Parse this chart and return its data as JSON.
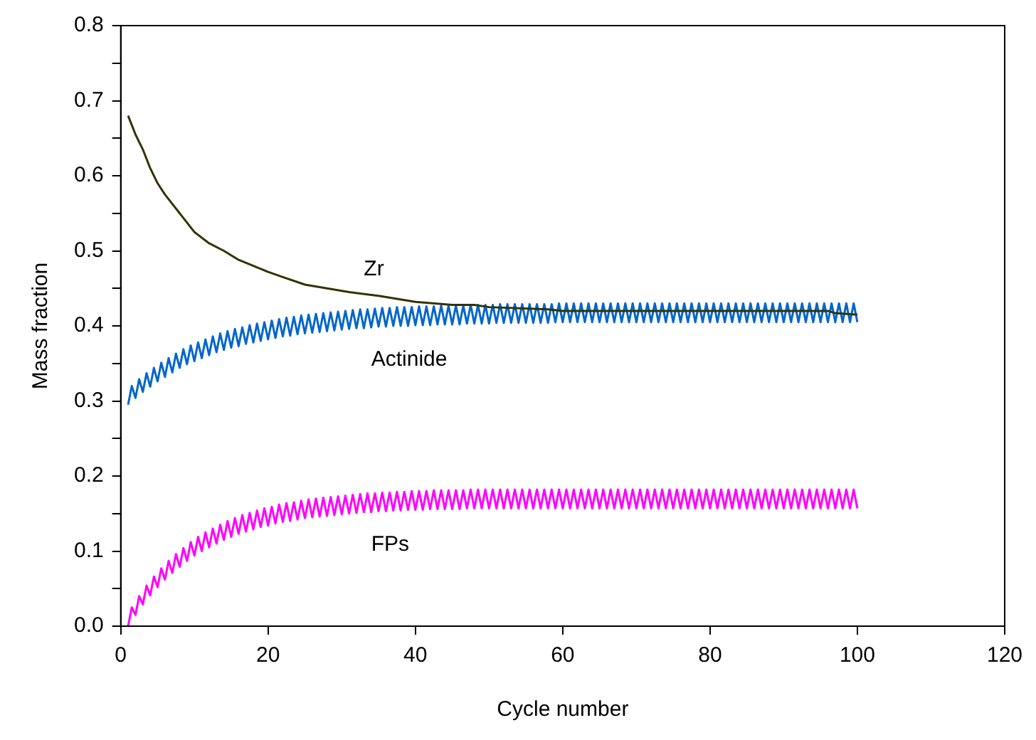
{
  "chart_data": {
    "type": "line",
    "xlabel": "Cycle number",
    "ylabel": "Mass fraction",
    "grid": false,
    "legend": false,
    "marker": "none",
    "line_style": "solid",
    "xlim": [
      0,
      120
    ],
    "xticks": [
      0,
      20,
      40,
      60,
      80,
      100,
      120
    ],
    "ylim": [
      0,
      0.8
    ],
    "yticks": [
      {
        "value": 0,
        "label": "0.0"
      },
      {
        "value": 0.05,
        "label": null
      },
      0.1,
      {
        "value": 0.15,
        "label": null
      },
      0.2,
      {
        "value": 0.25,
        "label": null
      },
      0.3,
      {
        "value": 0.35,
        "label": null
      },
      0.4,
      {
        "value": 0.45,
        "label": null
      },
      0.5,
      {
        "value": 0.55,
        "label": null
      },
      0.6,
      {
        "value": 0.65,
        "label": null
      },
      0.7,
      {
        "value": 0.75,
        "label": null
      },
      0.8
    ],
    "x": [
      1,
      1.5,
      2,
      2.5,
      3,
      3.5,
      4,
      4.5,
      5,
      5.5,
      6,
      6.5,
      7,
      7.5,
      8,
      8.5,
      9,
      9.5,
      10,
      10.5,
      11,
      11.5,
      12,
      12.5,
      13,
      13.5,
      14,
      14.5,
      15,
      15.5,
      16,
      16.5,
      17,
      17.5,
      18,
      18.5,
      19,
      19.5,
      20,
      20.5,
      21,
      21.5,
      22,
      22.5,
      23,
      23.5,
      24,
      24.5,
      25,
      25.5,
      26,
      26.5,
      27,
      27.5,
      28,
      28.5,
      29,
      29.5,
      30,
      30.5,
      31,
      31.5,
      32,
      32.5,
      33,
      33.5,
      34,
      34.5,
      35,
      35.5,
      36,
      36.5,
      37,
      37.5,
      38,
      38.5,
      39,
      39.5,
      40,
      40.5,
      41,
      41.5,
      42,
      42.5,
      43,
      43.5,
      44,
      44.5,
      45,
      45.5,
      46,
      46.5,
      47,
      47.5,
      48,
      48.5,
      49,
      49.5,
      50,
      50.5,
      51,
      51.5,
      52,
      52.5,
      53,
      53.5,
      54,
      54.5,
      55,
      55.5,
      56,
      56.5,
      57,
      57.5,
      58,
      58.5,
      59,
      59.5,
      60,
      60.5,
      61,
      61.5,
      62,
      62.5,
      63,
      63.5,
      64,
      64.5,
      65,
      65.5,
      66,
      66.5,
      67,
      67.5,
      68,
      68.5,
      69,
      69.5,
      70,
      70.5,
      71,
      71.5,
      72,
      72.5,
      73,
      73.5,
      74,
      74.5,
      75,
      75.5,
      76,
      76.5,
      77,
      77.5,
      78,
      78.5,
      79,
      79.5,
      80,
      80.5,
      81,
      81.5,
      82,
      82.5,
      83,
      83.5,
      84,
      84.5,
      85,
      85.5,
      86,
      86.5,
      87,
      87.5,
      88,
      88.5,
      89,
      89.5,
      90,
      90.5,
      91,
      91.5,
      92,
      92.5,
      93,
      93.5,
      94,
      94.5,
      95,
      95.5,
      96,
      96.5,
      97,
      97.5,
      98,
      98.5,
      99,
      99.5,
      100
    ],
    "series": [
      {
        "name": "Zr",
        "color": "#333300",
        "x": [
          1,
          2,
          3,
          4,
          5,
          6,
          8,
          10,
          12,
          14,
          16,
          18,
          20,
          22,
          25,
          28,
          31,
          35,
          40,
          45,
          48,
          50,
          58,
          60,
          70,
          80,
          90,
          96,
          97,
          100
        ],
        "values": [
          0.68,
          0.655,
          0.635,
          0.61,
          0.59,
          0.575,
          0.55,
          0.525,
          0.51,
          0.5,
          0.488,
          0.48,
          0.472,
          0.465,
          0.455,
          0.45,
          0.445,
          0.44,
          0.432,
          0.428,
          0.428,
          0.425,
          0.422,
          0.42,
          0.42,
          0.42,
          0.42,
          0.42,
          0.417,
          0.415
        ]
      },
      {
        "name": "Actinide",
        "color": "#0066cc",
        "values": [
          0.295,
          0.32,
          0.304,
          0.329,
          0.312,
          0.337,
          0.319,
          0.344,
          0.326,
          0.351,
          0.332,
          0.357,
          0.338,
          0.363,
          0.344,
          0.369,
          0.349,
          0.374,
          0.353,
          0.378,
          0.357,
          0.382,
          0.361,
          0.386,
          0.365,
          0.39,
          0.368,
          0.393,
          0.371,
          0.396,
          0.373,
          0.398,
          0.376,
          0.401,
          0.378,
          0.403,
          0.38,
          0.405,
          0.382,
          0.407,
          0.384,
          0.409,
          0.386,
          0.411,
          0.387,
          0.412,
          0.389,
          0.414,
          0.39,
          0.415,
          0.391,
          0.416,
          0.392,
          0.417,
          0.393,
          0.418,
          0.394,
          0.419,
          0.395,
          0.42,
          0.396,
          0.421,
          0.397,
          0.422,
          0.397,
          0.422,
          0.398,
          0.423,
          0.399,
          0.424,
          0.399,
          0.424,
          0.4,
          0.425,
          0.4,
          0.425,
          0.4,
          0.425,
          0.401,
          0.426,
          0.401,
          0.426,
          0.401,
          0.426,
          0.402,
          0.427,
          0.402,
          0.427,
          0.402,
          0.427,
          0.402,
          0.427,
          0.403,
          0.428,
          0.403,
          0.428,
          0.403,
          0.428,
          0.403,
          0.428,
          0.404,
          0.429,
          0.404,
          0.429,
          0.404,
          0.429,
          0.404,
          0.429,
          0.404,
          0.429,
          0.404,
          0.429,
          0.404,
          0.429,
          0.404,
          0.429,
          0.405,
          0.43,
          0.405,
          0.43,
          0.405,
          0.43,
          0.405,
          0.43,
          0.405,
          0.43,
          0.405,
          0.43,
          0.405,
          0.43,
          0.405,
          0.43,
          0.405,
          0.43,
          0.405,
          0.43,
          0.405,
          0.43,
          0.405,
          0.43,
          0.405,
          0.43,
          0.405,
          0.43,
          0.405,
          0.43,
          0.405,
          0.43,
          0.405,
          0.43,
          0.405,
          0.43,
          0.405,
          0.43,
          0.405,
          0.43,
          0.405,
          0.43,
          0.405,
          0.43,
          0.405,
          0.43,
          0.405,
          0.43,
          0.405,
          0.43,
          0.405,
          0.43,
          0.405,
          0.43,
          0.405,
          0.43,
          0.405,
          0.43,
          0.405,
          0.43,
          0.405,
          0.43,
          0.405,
          0.43,
          0.405,
          0.43,
          0.405,
          0.43,
          0.405,
          0.43,
          0.405,
          0.43,
          0.405,
          0.43,
          0.405,
          0.43,
          0.405,
          0.43,
          0.405,
          0.43,
          0.405,
          0.43,
          0.405
        ]
      },
      {
        "name": "FPs",
        "color": "#ff00ff",
        "values": [
          0,
          0.025,
          0.015,
          0.04,
          0.029,
          0.054,
          0.041,
          0.066,
          0.052,
          0.077,
          0.062,
          0.087,
          0.071,
          0.096,
          0.079,
          0.104,
          0.087,
          0.112,
          0.094,
          0.119,
          0.1,
          0.125,
          0.105,
          0.13,
          0.11,
          0.135,
          0.115,
          0.14,
          0.119,
          0.144,
          0.123,
          0.148,
          0.126,
          0.151,
          0.129,
          0.154,
          0.132,
          0.157,
          0.134,
          0.159,
          0.137,
          0.162,
          0.139,
          0.164,
          0.14,
          0.165,
          0.142,
          0.167,
          0.144,
          0.169,
          0.145,
          0.17,
          0.146,
          0.171,
          0.147,
          0.172,
          0.148,
          0.173,
          0.149,
          0.174,
          0.15,
          0.175,
          0.151,
          0.176,
          0.152,
          0.177,
          0.152,
          0.177,
          0.153,
          0.178,
          0.153,
          0.178,
          0.154,
          0.179,
          0.154,
          0.179,
          0.155,
          0.18,
          0.155,
          0.18,
          0.155,
          0.18,
          0.156,
          0.181,
          0.156,
          0.181,
          0.156,
          0.181,
          0.156,
          0.181,
          0.156,
          0.181,
          0.157,
          0.182,
          0.157,
          0.182,
          0.157,
          0.182,
          0.157,
          0.182,
          0.157,
          0.182,
          0.157,
          0.182,
          0.157,
          0.182,
          0.157,
          0.182,
          0.157,
          0.182,
          0.157,
          0.182,
          0.157,
          0.182,
          0.157,
          0.182,
          0.157,
          0.182,
          0.157,
          0.182,
          0.157,
          0.182,
          0.157,
          0.182,
          0.157,
          0.182,
          0.157,
          0.182,
          0.157,
          0.182,
          0.157,
          0.182,
          0.157,
          0.182,
          0.157,
          0.182,
          0.157,
          0.182,
          0.157,
          0.182,
          0.157,
          0.182,
          0.157,
          0.182,
          0.157,
          0.182,
          0.157,
          0.182,
          0.157,
          0.182,
          0.157,
          0.182,
          0.157,
          0.182,
          0.157,
          0.182,
          0.157,
          0.182,
          0.157,
          0.182,
          0.157,
          0.182,
          0.157,
          0.182,
          0.157,
          0.182,
          0.157,
          0.182,
          0.157,
          0.182,
          0.157,
          0.182,
          0.157,
          0.182,
          0.157,
          0.182,
          0.157,
          0.182,
          0.157,
          0.182,
          0.157,
          0.182,
          0.157,
          0.182,
          0.157,
          0.182,
          0.157,
          0.182,
          0.157,
          0.182,
          0.157,
          0.182,
          0.157,
          0.182,
          0.157,
          0.182,
          0.157,
          0.182,
          0.157
        ]
      }
    ]
  }
}
